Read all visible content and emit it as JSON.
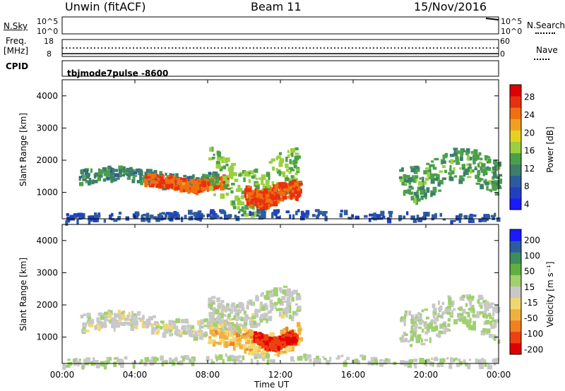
{
  "header": {
    "title": "Unwin (fitACF)",
    "beam": "Beam 11",
    "date": "15/Nov/2016"
  },
  "nsky": {
    "label": "N.Sky",
    "ticks": [
      "10^5",
      "10^0"
    ]
  },
  "nsearch": {
    "label": "N.Search",
    "ticks": [
      "10^5",
      "10^0"
    ]
  },
  "freq": {
    "label_line1": "Freq.",
    "label_line2": "[MHz]",
    "ticks": [
      "18",
      "8"
    ]
  },
  "nave": {
    "label": "Nave",
    "ticks": [
      "60",
      "0"
    ]
  },
  "cpid": {
    "label": "CPID",
    "value": "tbjmode7pulse  -8600"
  },
  "colors": {
    "power": [
      "#1a1aff",
      "#2040c0",
      "#2c5ca0",
      "#3e7e6a",
      "#4aa04a",
      "#9ad040",
      "#e8d020",
      "#f0a020",
      "#f07010",
      "#e83010",
      "#e00000"
    ],
    "velocity": [
      "#e00000",
      "#ee4010",
      "#f08020",
      "#f0b040",
      "#f0d870",
      "#c8c8c8",
      "#a0d070",
      "#60b040",
      "#3c8c5c",
      "#2c5ca0",
      "#1a1aff"
    ]
  },
  "chart_data": [
    {
      "type": "heatmap",
      "name": "power",
      "ylabel": "Slant Range [km]",
      "yticks": [
        "4000",
        "3000",
        "2000",
        "1000"
      ],
      "ylim": [
        180,
        4500
      ],
      "xlim": [
        0,
        24
      ],
      "colorbar": {
        "label": "Power [dB]",
        "ticks": [
          "28",
          "24",
          "20",
          "16",
          "12",
          "8",
          "4"
        ],
        "range": [
          0,
          30
        ]
      },
      "features": [
        {
          "x0": 0.9,
          "x1": 8.5,
          "r0": 1250,
          "r1": 1750,
          "value": 10
        },
        {
          "x0": 4.5,
          "x1": 9.0,
          "r0": 1150,
          "r1": 1550,
          "value": 24
        },
        {
          "x0": 8.0,
          "x1": 13.0,
          "r0": 600,
          "r1": 2200,
          "value": 14
        },
        {
          "x0": 10.0,
          "x1": 13.0,
          "r0": 700,
          "r1": 1300,
          "value": 25
        },
        {
          "x0": 18.5,
          "x1": 24.0,
          "r0": 1000,
          "r1": 2200,
          "value": 12
        },
        {
          "x0": 0.0,
          "x1": 24.0,
          "r0": 180,
          "r1": 450,
          "value": 6
        }
      ]
    },
    {
      "type": "heatmap",
      "name": "velocity",
      "ylabel": "Slant Range [km]",
      "yticks": [
        "4000",
        "3000",
        "2000",
        "1000"
      ],
      "ylim": [
        180,
        4500
      ],
      "xlim": [
        0,
        24
      ],
      "xticks": [
        "00:00",
        "04:00",
        "08:00",
        "12:00",
        "16:00",
        "20:00",
        "00:00"
      ],
      "xlabel": "Time UT",
      "colorbar": {
        "label": "Velocity [m s⁻¹]",
        "ticks": [
          "200",
          "100",
          "50",
          "15",
          "-15",
          "-50",
          "-100",
          "-200"
        ],
        "range": [
          -250,
          250
        ]
      },
      "features": [
        {
          "x0": 0.9,
          "x1": 9.0,
          "r0": 1150,
          "r1": 1750,
          "value": 0
        },
        {
          "x0": 8.0,
          "x1": 13.0,
          "r0": 600,
          "r1": 1400,
          "value": -80
        },
        {
          "x0": 10.5,
          "x1": 12.8,
          "r0": 750,
          "r1": 1150,
          "value": -200
        },
        {
          "x0": 8.0,
          "x1": 13.0,
          "r0": 1400,
          "r1": 2400,
          "value": 10
        },
        {
          "x0": 18.5,
          "x1": 24.0,
          "r0": 1000,
          "r1": 2200,
          "value": 25
        },
        {
          "x0": 0.0,
          "x1": 24.0,
          "r0": 180,
          "r1": 450,
          "value": 15
        }
      ]
    }
  ]
}
